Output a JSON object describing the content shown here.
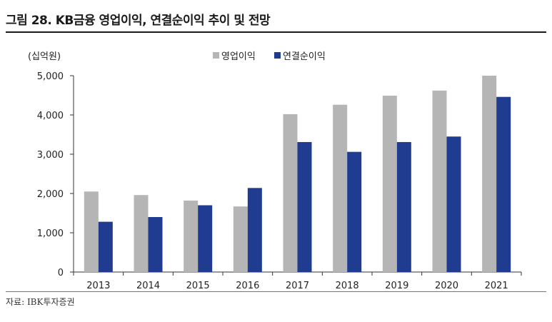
{
  "figure": {
    "title": "그림 28. KB금융 영업이익, 연결순이익 추이 및 전망",
    "source": "자료: IBK투자증권"
  },
  "colors": {
    "operating_profit": "#b5b5b5",
    "net_profit": "#1f3c91",
    "axis": "#333333"
  },
  "chart_data": {
    "type": "bar",
    "unit_label": "(십억원)",
    "categories": [
      "2013",
      "2014",
      "2015",
      "2016",
      "2017",
      "2018",
      "2019",
      "2020",
      "2021"
    ],
    "series": [
      {
        "name": "영업이익",
        "values": [
          2050,
          1960,
          1820,
          1670,
          4020,
          4260,
          4490,
          4620,
          5000
        ]
      },
      {
        "name": "연결순이익",
        "values": [
          1280,
          1400,
          1700,
          2140,
          3310,
          3060,
          3310,
          3450,
          4460
        ]
      }
    ],
    "ylim": [
      0,
      5000
    ],
    "yticks": [
      0,
      1000,
      2000,
      3000,
      4000,
      5000
    ],
    "ytick_labels": [
      "0",
      "1,000",
      "2,000",
      "3,000",
      "4,000",
      "5,000"
    ],
    "legend_position": "top-center",
    "grid": false
  }
}
